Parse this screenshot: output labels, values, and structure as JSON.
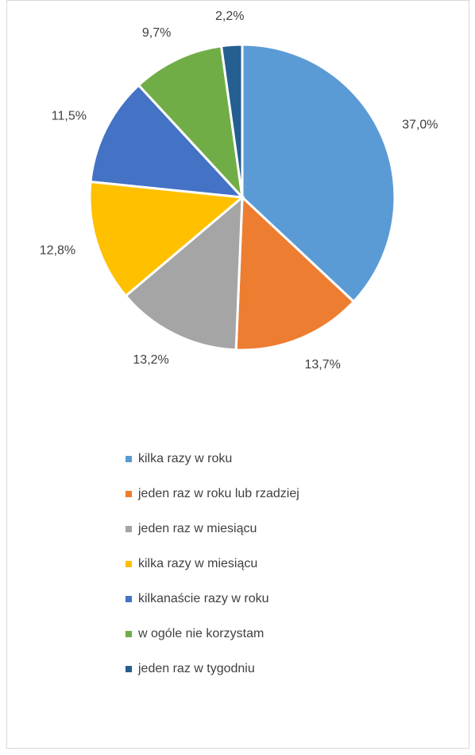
{
  "chart_data": {
    "type": "pie",
    "categories": [
      "kilka razy w roku",
      "jeden raz w roku lub rzadziej",
      "jeden raz w miesiącu",
      "kilka razy w miesiącu",
      "kilkanaście razy w roku",
      "w ogóle nie korzystam",
      "jeden raz w tygodniu"
    ],
    "values": [
      37.0,
      13.7,
      13.2,
      12.8,
      11.5,
      9.7,
      2.2
    ],
    "value_labels": [
      "37,0%",
      "13,7%",
      "13,2%",
      "12,8%",
      "11,5%",
      "9,7%",
      "2,2%"
    ],
    "colors": [
      "#5b9bd5",
      "#ed7d31",
      "#a5a5a5",
      "#ffc000",
      "#4472c4",
      "#70ad47",
      "#255e91"
    ],
    "legend": "bottom"
  }
}
